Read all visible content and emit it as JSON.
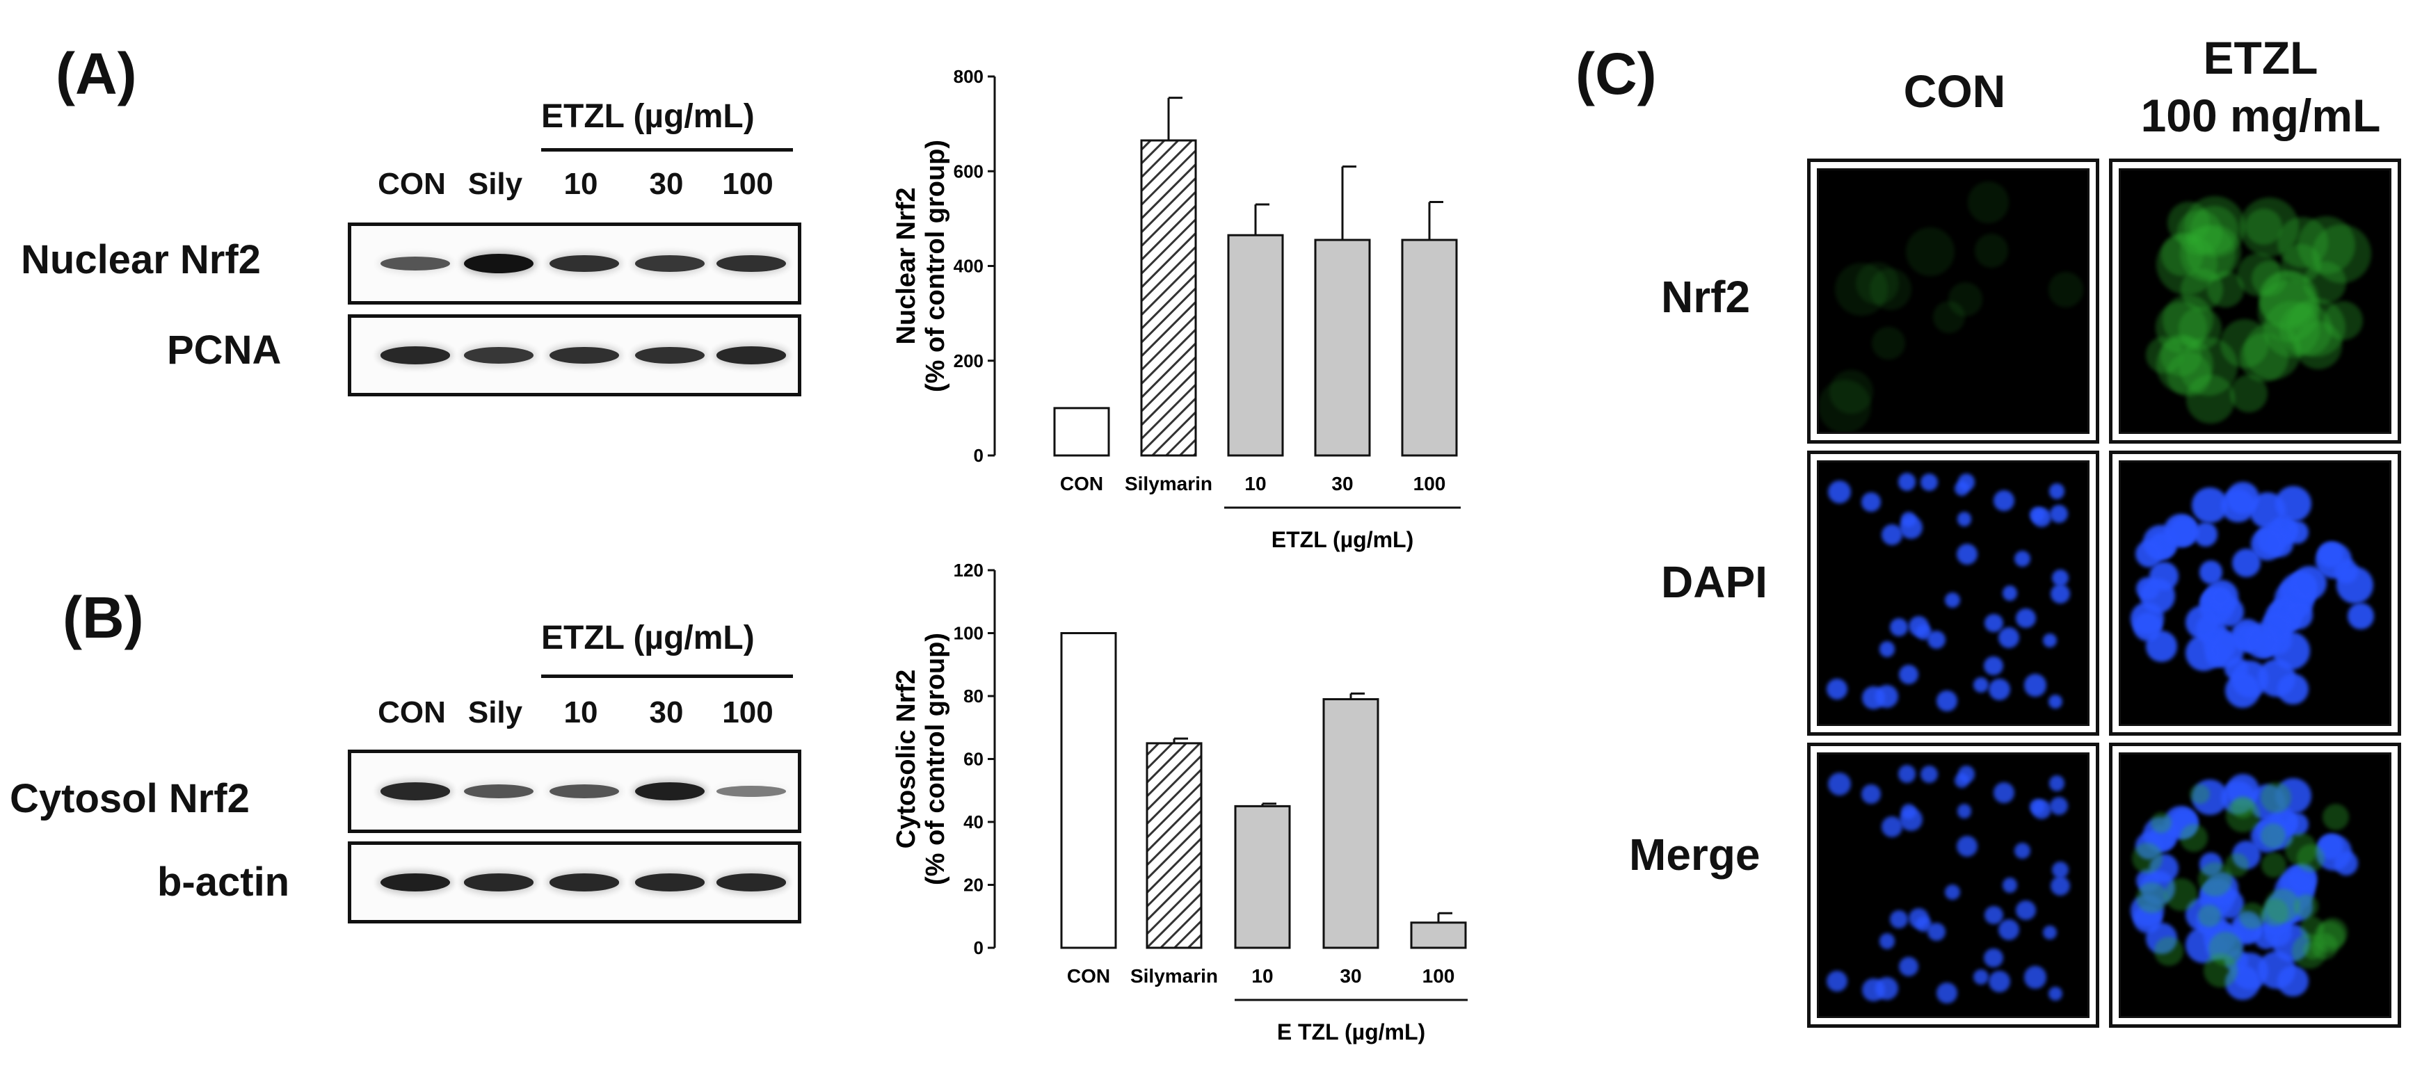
{
  "panels": {
    "a": {
      "label": "(A)",
      "treatment": "ETZL (µg/mL)",
      "lanes": [
        "CON",
        "Sily",
        "10",
        "30",
        "100"
      ],
      "blots": [
        {
          "name": "Nuclear Nrf2",
          "intensity": [
            0.55,
            1.0,
            0.8,
            0.75,
            0.8
          ]
        },
        {
          "name": "PCNA",
          "intensity": [
            0.85,
            0.75,
            0.8,
            0.8,
            0.85
          ]
        }
      ]
    },
    "b": {
      "label": "(B)",
      "treatment": "ETZL (µg/mL)",
      "lanes": [
        "CON",
        "Sily",
        "10",
        "30",
        "100"
      ],
      "blots": [
        {
          "name": "Cytosol Nrf2",
          "intensity": [
            0.85,
            0.55,
            0.55,
            0.9,
            0.3
          ]
        },
        {
          "name": "b-actin",
          "intensity": [
            0.9,
            0.85,
            0.85,
            0.85,
            0.85
          ]
        }
      ]
    },
    "c": {
      "label": "(C)",
      "columns": [
        "CON",
        "ETZL\n100 mg/mL"
      ],
      "rows": [
        "Nrf2",
        "DAPI",
        "Merge"
      ]
    }
  },
  "chart_data": [
    {
      "type": "bar",
      "title": "",
      "xlabel": "",
      "ylabel": "Nuclear Nrf2\n(% of control group)",
      "categories": [
        "CON",
        "Silymarin",
        "10",
        "30",
        "100"
      ],
      "values": [
        100,
        665,
        465,
        455,
        455
      ],
      "errors": [
        0,
        90,
        65,
        155,
        80
      ],
      "fills": [
        "white",
        "hatched",
        "gray",
        "gray",
        "gray"
      ],
      "ylim": [
        0,
        800
      ],
      "yticks": [
        0,
        200,
        400,
        600,
        800
      ],
      "group_label": "ETZL (µg/mL)"
    },
    {
      "type": "bar",
      "title": "",
      "xlabel": "",
      "ylabel": "Cytosolic Nrf2\n(% of control group)",
      "categories": [
        "CON",
        "Silymarin",
        "10",
        "30",
        "100"
      ],
      "values": [
        100,
        65,
        45,
        79,
        8
      ],
      "errors": [
        0,
        1.5,
        0.8,
        1.8,
        3
      ],
      "fills": [
        "white",
        "hatched",
        "gray",
        "gray",
        "gray"
      ],
      "ylim": [
        0,
        120
      ],
      "yticks": [
        0,
        20,
        40,
        60,
        80,
        100,
        120
      ],
      "group_label": "E TZL (µg/mL)"
    }
  ],
  "colors": {
    "bar_gray": "#c8c8c8",
    "nrf2_green": "#2fae2f",
    "dapi_blue": "#2a55ff"
  }
}
